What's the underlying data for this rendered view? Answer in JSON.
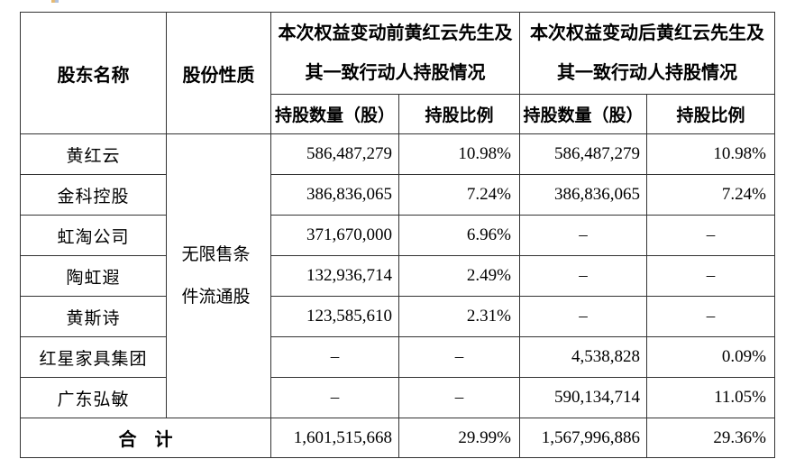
{
  "page": {
    "background": "#ffffff",
    "border_color": "#333333",
    "text_color": "#000000"
  },
  "table": {
    "header": {
      "shareholder": "股东名称",
      "share_nature": "股份性质",
      "before_group_line1": "本次权益变动前黄红云先生及",
      "before_group_line2": "其一致行动人持股情况",
      "after_group_line1": "本次权益变动后黄红云先生及",
      "after_group_line2": "其一致行动人持股情况",
      "qty_col": "持股数量（股）",
      "pct_col": "持股比例"
    },
    "share_nature_value": "无限售条件流通股",
    "rows": [
      {
        "name": "黄红云",
        "before_qty": "586,487,279",
        "before_pct": "10.98%",
        "after_qty": "586,487,279",
        "after_pct": "10.98%"
      },
      {
        "name": "金科控股",
        "before_qty": "386,836,065",
        "before_pct": "7.24%",
        "after_qty": "386,836,065",
        "after_pct": "7.24%"
      },
      {
        "name": "虹淘公司",
        "before_qty": "371,670,000",
        "before_pct": "6.96%",
        "after_qty": "–",
        "after_pct": "–"
      },
      {
        "name": "陶虹遐",
        "before_qty": "132,936,714",
        "before_pct": "2.49%",
        "after_qty": "–",
        "after_pct": "–"
      },
      {
        "name": "黄斯诗",
        "before_qty": "123,585,610",
        "before_pct": "2.31%",
        "after_qty": "–",
        "after_pct": "–"
      },
      {
        "name": "红星家具集团",
        "before_qty": "–",
        "before_pct": "–",
        "after_qty": "4,538,828",
        "after_pct": "0.09%"
      },
      {
        "name": "广东弘敏",
        "before_qty": "–",
        "before_pct": "–",
        "after_qty": "590,134,714",
        "after_pct": "11.05%"
      }
    ],
    "total": {
      "label": "合　计",
      "before_qty": "1,601,515,668",
      "before_pct": "29.99%",
      "after_qty": "1,567,996,886",
      "after_pct": "29.36%"
    }
  }
}
